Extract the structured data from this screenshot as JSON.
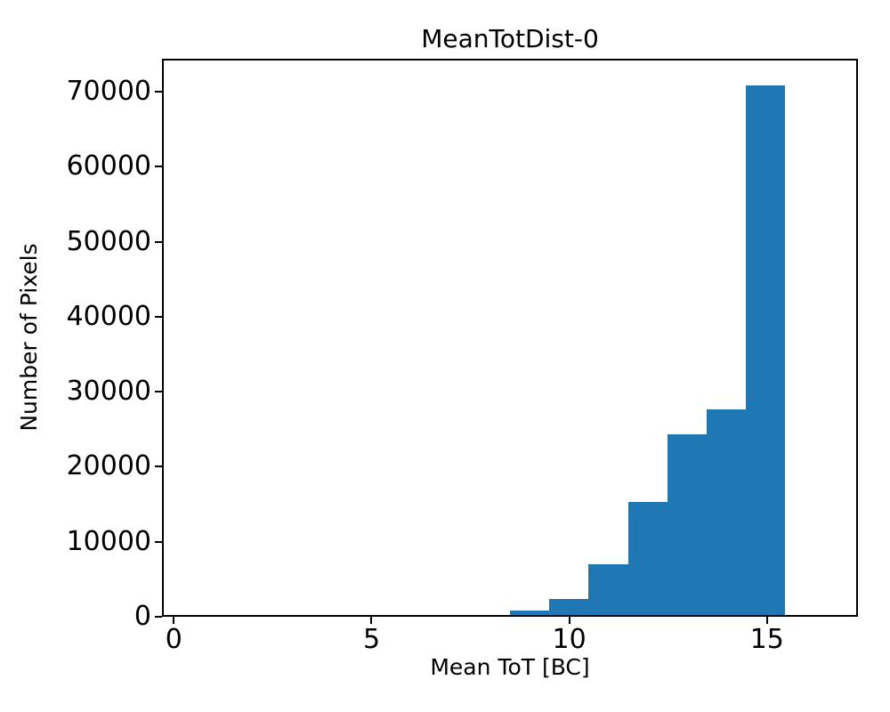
{
  "chart_data": {
    "type": "bar",
    "subtype": "histogram",
    "title": "MeanTotDist-0",
    "xlabel": "Mean ToT [BC]",
    "ylabel": "Number of Pixels",
    "bin_edges": [
      8.5,
      9.5,
      10.5,
      11.5,
      12.5,
      13.5,
      14.5,
      15.5
    ],
    "counts": [
      600,
      2100,
      6800,
      15200,
      24200,
      27600,
      71000
    ],
    "bar_color": "#1f77b4",
    "axis_color": "#000000",
    "background_color": "#ffffff",
    "xlim": [
      -0.3,
      17.3
    ],
    "ylim": [
      0,
      74400
    ],
    "x_ticks": [
      0,
      5,
      10,
      15
    ],
    "y_ticks": [
      0,
      10000,
      20000,
      30000,
      40000,
      50000,
      60000,
      70000
    ],
    "grid": false,
    "legend": null
  }
}
